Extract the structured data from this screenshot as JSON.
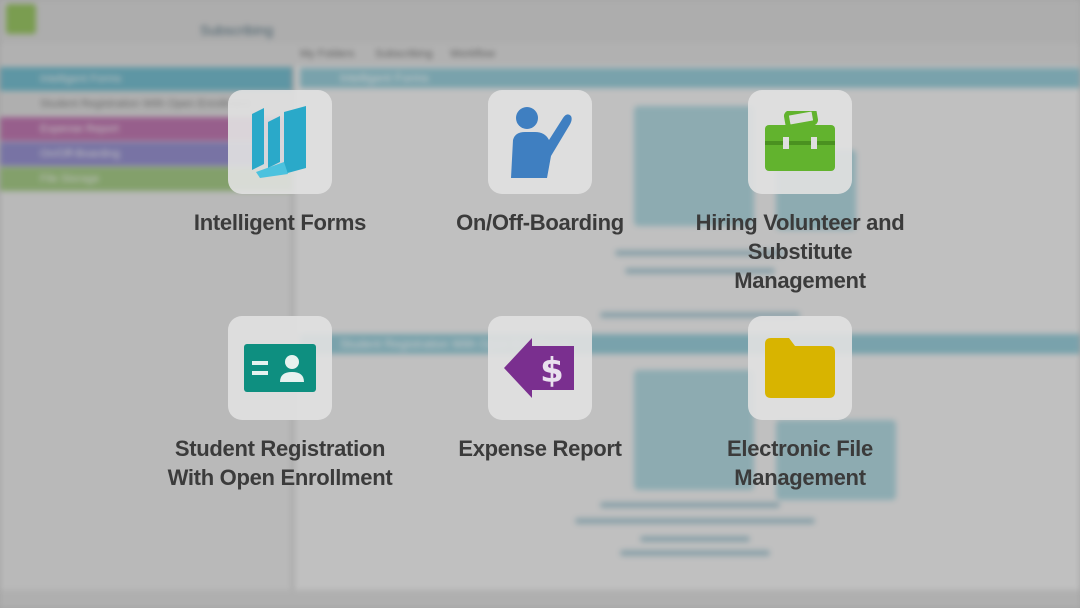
{
  "background_app": {
    "title": "Subscribing",
    "breadcrumbs": [
      "My Folders",
      "Subscribing",
      "Workflow"
    ],
    "tree_items": [
      "Intelligent Forms",
      "Student Registration With Open Enrollment",
      "Expense Report",
      "On/Off-Boarding",
      "File Storage"
    ],
    "panel_titles": [
      "Intelligent Forms",
      "Student Registration With Open Enrollment"
    ]
  },
  "apps": [
    {
      "label": "Intelligent Forms",
      "icon": "book-forms-icon",
      "color": "#2aa9c9"
    },
    {
      "label": "On/Off-Boarding",
      "icon": "person-waving-icon",
      "color": "#3f7fc1"
    },
    {
      "label": "Hiring Volunteer and Substitute Management",
      "icon": "briefcase-icon",
      "color": "#62b32e"
    },
    {
      "label": "Student Registration With Open Enrollment",
      "icon": "id-card-icon",
      "color": "#0e8f80"
    },
    {
      "label": "Expense Report",
      "icon": "dollar-arrow-icon",
      "color": "#7a2f8f"
    },
    {
      "label": "Electronic File Management",
      "icon": "folder-icon",
      "color": "#d8b400"
    }
  ]
}
